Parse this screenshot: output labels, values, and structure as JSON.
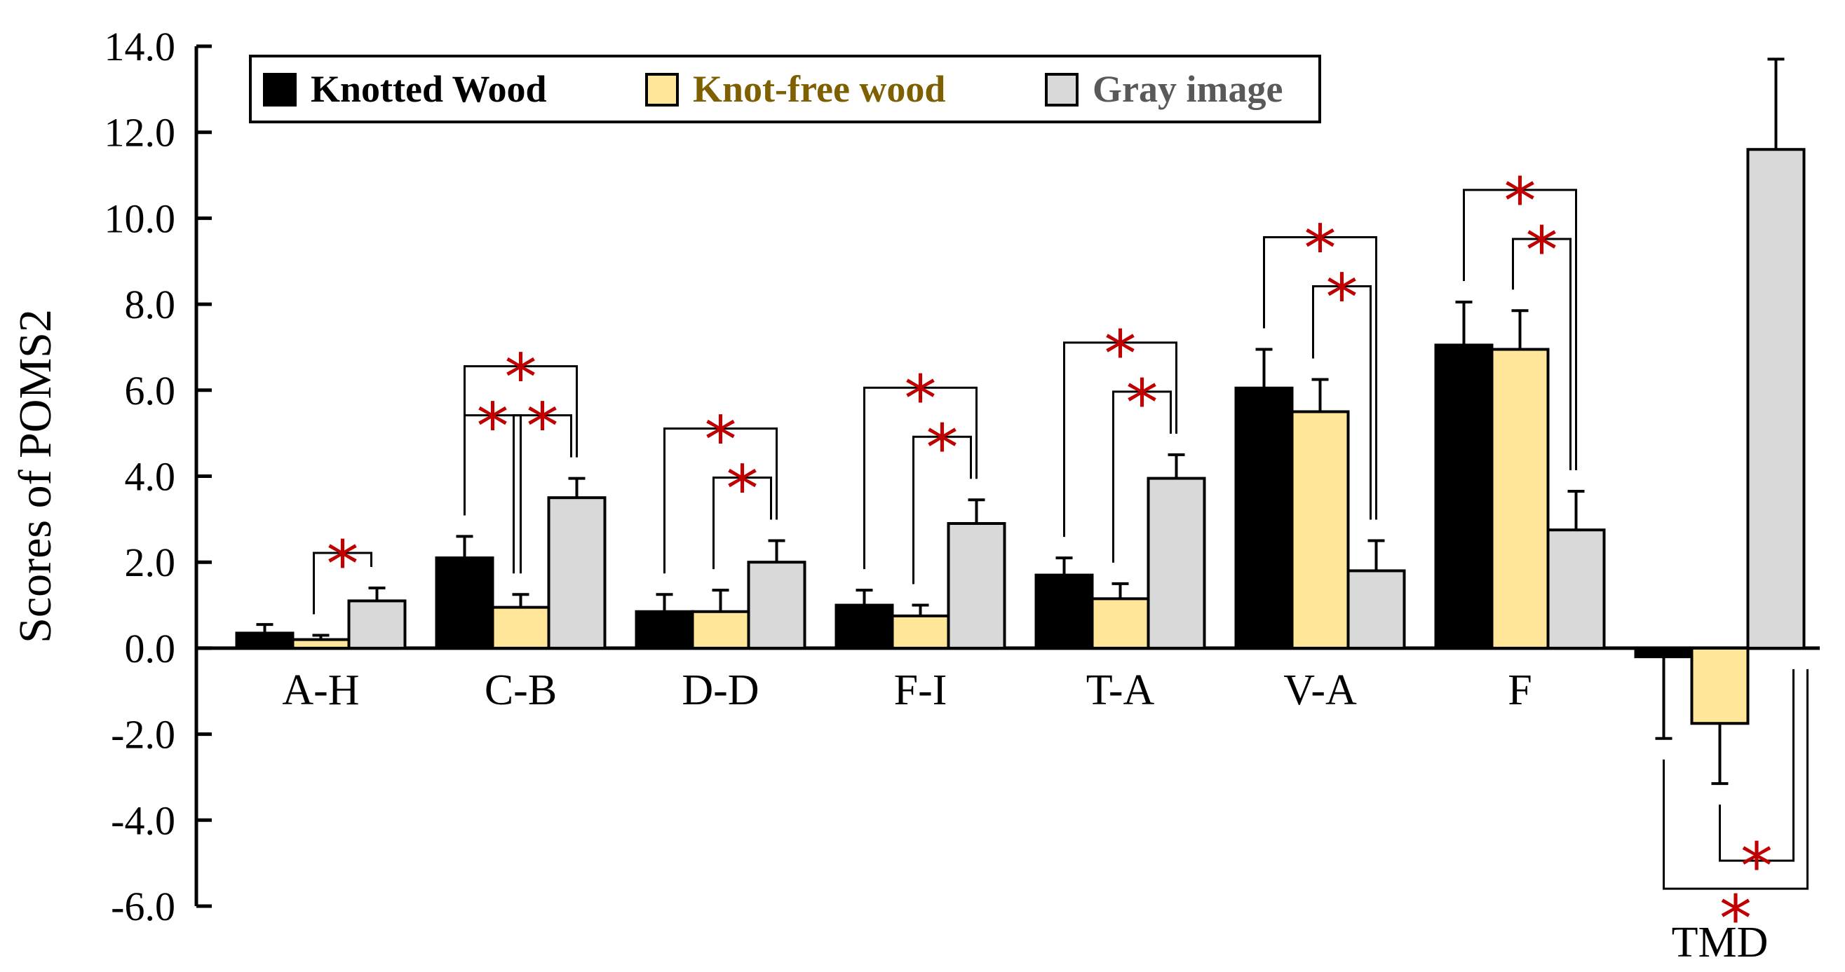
{
  "chart_data": {
    "type": "bar",
    "ylabel": "Scores of POMS2",
    "xlabel": "",
    "ylim": [
      -6,
      14
    ],
    "yticks": [
      "-6.0",
      "-4.0",
      "-2.0",
      "0.0",
      "2.0",
      "4.0",
      "6.0",
      "8.0",
      "10.0",
      "12.0",
      "14.0"
    ],
    "categories": [
      "A-H",
      "C-B",
      "D-D",
      "F-I",
      "T-A",
      "V-A",
      "F",
      "TMD"
    ],
    "legend_position": "top-left",
    "series": [
      {
        "name": "Knotted Wood",
        "color": "#000000",
        "label_color": "#000000",
        "values": [
          0.35,
          2.1,
          0.85,
          1.0,
          1.7,
          6.05,
          7.05,
          -0.2
        ],
        "errors": [
          0.2,
          0.5,
          0.4,
          0.35,
          0.4,
          0.9,
          1.0,
          1.9
        ]
      },
      {
        "name": "Knot-free wood",
        "color": "#ffe699",
        "label_color": "#7f6000",
        "values": [
          0.2,
          0.95,
          0.85,
          0.75,
          1.15,
          5.5,
          6.95,
          -1.75
        ],
        "errors": [
          0.1,
          0.3,
          0.5,
          0.25,
          0.35,
          0.75,
          0.9,
          1.4
        ]
      },
      {
        "name": "Gray image",
        "color": "#d9d9d9",
        "label_color": "#595959",
        "values": [
          1.1,
          3.5,
          2.0,
          2.9,
          3.95,
          1.8,
          2.75,
          11.6
        ],
        "errors": [
          0.3,
          0.45,
          0.5,
          0.55,
          0.55,
          0.7,
          0.9,
          2.1
        ]
      }
    ],
    "significance": [
      {
        "category": "A-H",
        "pairs": [
          [
            1,
            2
          ]
        ]
      },
      {
        "category": "C-B",
        "pairs": [
          [
            0,
            2
          ],
          [
            0,
            1
          ],
          [
            1,
            2
          ]
        ]
      },
      {
        "category": "D-D",
        "pairs": [
          [
            0,
            2
          ],
          [
            1,
            2
          ]
        ]
      },
      {
        "category": "F-I",
        "pairs": [
          [
            0,
            2
          ],
          [
            1,
            2
          ]
        ]
      },
      {
        "category": "T-A",
        "pairs": [
          [
            0,
            2
          ],
          [
            1,
            2
          ]
        ]
      },
      {
        "category": "V-A",
        "pairs": [
          [
            0,
            2
          ],
          [
            1,
            2
          ]
        ]
      },
      {
        "category": "F",
        "pairs": [
          [
            0,
            2
          ],
          [
            1,
            2
          ]
        ]
      },
      {
        "category": "TMD",
        "pairs": [
          [
            0,
            2
          ],
          [
            1,
            2
          ]
        ]
      }
    ],
    "significance_marker": "*",
    "significance_color": "#c00000"
  }
}
